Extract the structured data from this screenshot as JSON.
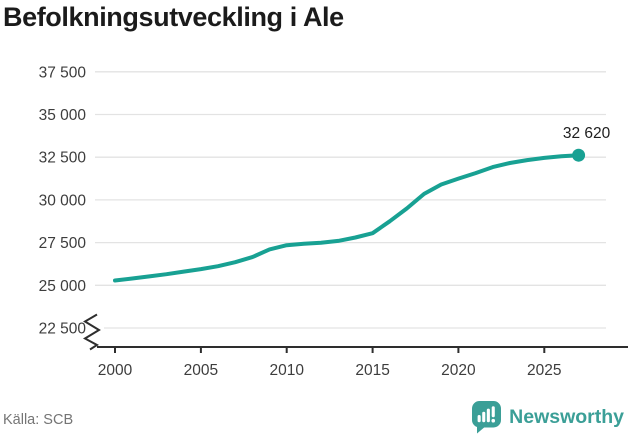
{
  "title": "Befolkningsutveckling i Ale",
  "footer": {
    "source": "Källa: SCB",
    "brand": "Newsworthy"
  },
  "chart_data": {
    "type": "line",
    "title": "Befolkningsutveckling i Ale",
    "xlabel": "",
    "ylabel": "",
    "x": [
      2000,
      2001,
      2002,
      2003,
      2004,
      2005,
      2006,
      2007,
      2008,
      2009,
      2010,
      2011,
      2012,
      2013,
      2014,
      2015,
      2016,
      2017,
      2018,
      2019,
      2020,
      2021,
      2022,
      2023,
      2024,
      2025,
      2026,
      2027
    ],
    "values": [
      25280,
      25400,
      25520,
      25650,
      25800,
      25950,
      26120,
      26350,
      26650,
      27100,
      27350,
      27430,
      27490,
      27600,
      27800,
      28050,
      28750,
      29500,
      30350,
      30900,
      31250,
      31570,
      31920,
      32160,
      32330,
      32460,
      32560,
      32620
    ],
    "end_point_value": 32620,
    "end_point_label": "32 620",
    "y_ticks": [
      22500,
      25000,
      27500,
      30000,
      32500,
      35000,
      37500
    ],
    "y_tick_labels": [
      "22 500",
      "25 000",
      "27 500",
      "30 000",
      "32 500",
      "35 000",
      "37 500"
    ],
    "x_ticks": [
      2000,
      2005,
      2010,
      2015,
      2020,
      2025
    ],
    "x_tick_labels": [
      "2000",
      "2005",
      "2010",
      "2015",
      "2020",
      "2025"
    ],
    "y_axis_break": true,
    "grid": "horizontal",
    "legend": "none",
    "colors": {
      "line": "#18a193",
      "axis": "#2e2e2e",
      "grid": "#e3e3e3",
      "tick_text": "#3d3d3d",
      "brand_teal": "#3b9f97"
    }
  }
}
